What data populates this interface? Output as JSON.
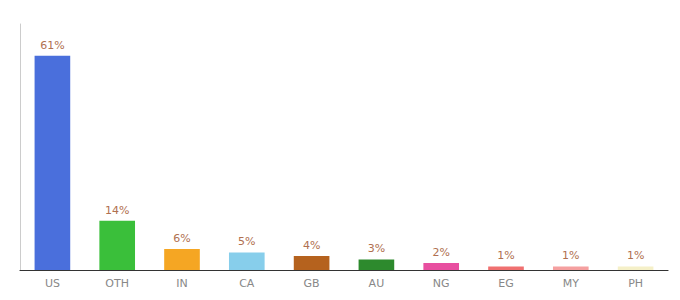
{
  "chart_data": {
    "type": "bar",
    "categories": [
      "US",
      "OTH",
      "IN",
      "CA",
      "GB",
      "AU",
      "NG",
      "EG",
      "MY",
      "PH"
    ],
    "values": [
      61,
      14,
      6,
      5,
      4,
      3,
      2,
      1,
      1,
      1
    ],
    "value_labels": [
      "61%",
      "14%",
      "6%",
      "5%",
      "4%",
      "3%",
      "2%",
      "1%",
      "1%",
      "1%"
    ],
    "colors": [
      "#4a6fdc",
      "#3abf3a",
      "#f5a623",
      "#87ceeb",
      "#b5621e",
      "#2d8a2d",
      "#e84fa0",
      "#f07070",
      "#f5a0a0",
      "#f5f0c8"
    ],
    "ylim": [
      0,
      70
    ],
    "grid": false,
    "legend": null,
    "data_labels": true,
    "tick_labels": "x"
  }
}
